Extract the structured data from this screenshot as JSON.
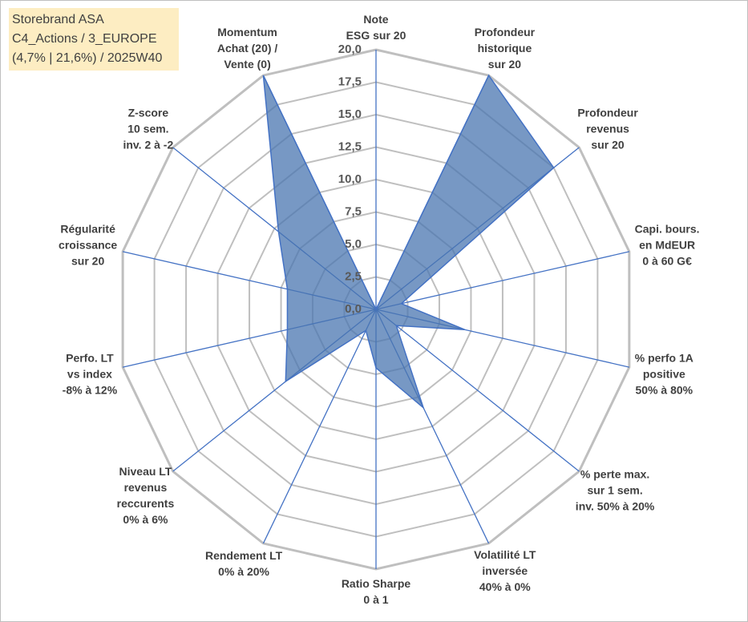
{
  "chart_data": {
    "type": "radar",
    "title": [
      "Storebrand ASA",
      "C4_Actions / 3_EUROPE",
      "(4,7% | 21,6%) / 2025W40"
    ],
    "categories": [
      "Note\nESG sur 20",
      "Profondeur\nhistorique\nsur 20",
      "Profondeur\nrevenus\nsur 20",
      "Capi. bours.\nen MdEUR\n0 à 60 G€",
      "% perfo 1A\npositive\n50% à 80%",
      "% perte max.\nsur 1 sem.\ninv. 50% à 20%",
      "Volatilité LT\ninversée\n40% à 0%",
      "Ratio Sharpe\n0 à 1",
      "Rendement LT\n0% à 20%",
      "Niveau LT\nrevenus\nreccurents\n0% à 6%",
      "Perfo. LT\nvs index\n-8% à 12%",
      "Régularité\ncroissance\nsur 20",
      "Z-score\n10 sem.\ninv. 2 à -2",
      "Momentum\nAchat (20) /\nVente (0)"
    ],
    "values": [
      0,
      20,
      17.5,
      2,
      7,
      2,
      8.4,
      4.5,
      1.8,
      8.9,
      7,
      7,
      9.6,
      20
    ],
    "color": "#4a76b0",
    "ylim": [
      0,
      20
    ],
    "yticks": [
      {
        "value": 0,
        "label": "0,0"
      },
      {
        "value": 2.5,
        "label": "2,5"
      },
      {
        "value": 5,
        "label": "5,0"
      },
      {
        "value": 7.5,
        "label": "7,5"
      },
      {
        "value": 10,
        "label": "10,0"
      },
      {
        "value": 12.5,
        "label": "12,5"
      },
      {
        "value": 15,
        "label": "15,0"
      },
      {
        "value": 17.5,
        "label": "17,5"
      },
      {
        "value": 20,
        "label": "20,0"
      }
    ]
  }
}
